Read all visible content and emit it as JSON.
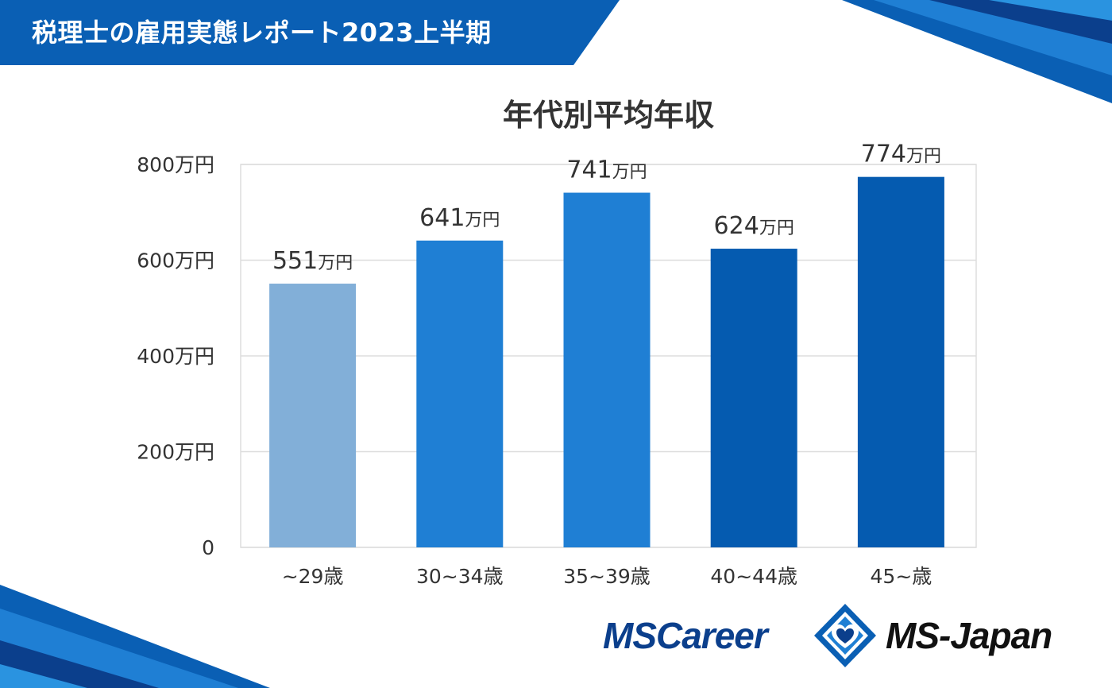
{
  "header": {
    "title": "税理士の雇用実態レポート2023上半期"
  },
  "chart_data": {
    "type": "bar",
    "title": "年代別平均年収",
    "categories": [
      "~29歳",
      "30~34歳",
      "35~39歳",
      "40~44歳",
      "45~歳"
    ],
    "values": [
      551,
      641,
      741,
      624,
      774
    ],
    "value_labels": [
      {
        "number": "551",
        "unit": "万円"
      },
      {
        "number": "641",
        "unit": "万円"
      },
      {
        "number": "741",
        "unit": "万円"
      },
      {
        "number": "624",
        "unit": "万円"
      },
      {
        "number": "774",
        "unit": "万円"
      }
    ],
    "bar_colors": [
      "#82afd8",
      "#1f7fd4",
      "#1f7fd4",
      "#055bb0",
      "#055bb0"
    ],
    "yticks": [
      {
        "value": 0,
        "label": "0"
      },
      {
        "value": 200,
        "label": "200万円"
      },
      {
        "value": 400,
        "label": "400万円"
      },
      {
        "value": 600,
        "label": "600万円"
      },
      {
        "value": 800,
        "label": "800万円"
      }
    ],
    "ylim": [
      0,
      800
    ],
    "grid": true,
    "xlabel": "",
    "ylabel": ""
  },
  "logos": {
    "left": "MSCareer",
    "right": "MS-Japan"
  },
  "colors": {
    "brand_blue": "#0a5fb4",
    "dark_blue": "#0b3f8c",
    "accent_blue": "#1f7fd4"
  }
}
